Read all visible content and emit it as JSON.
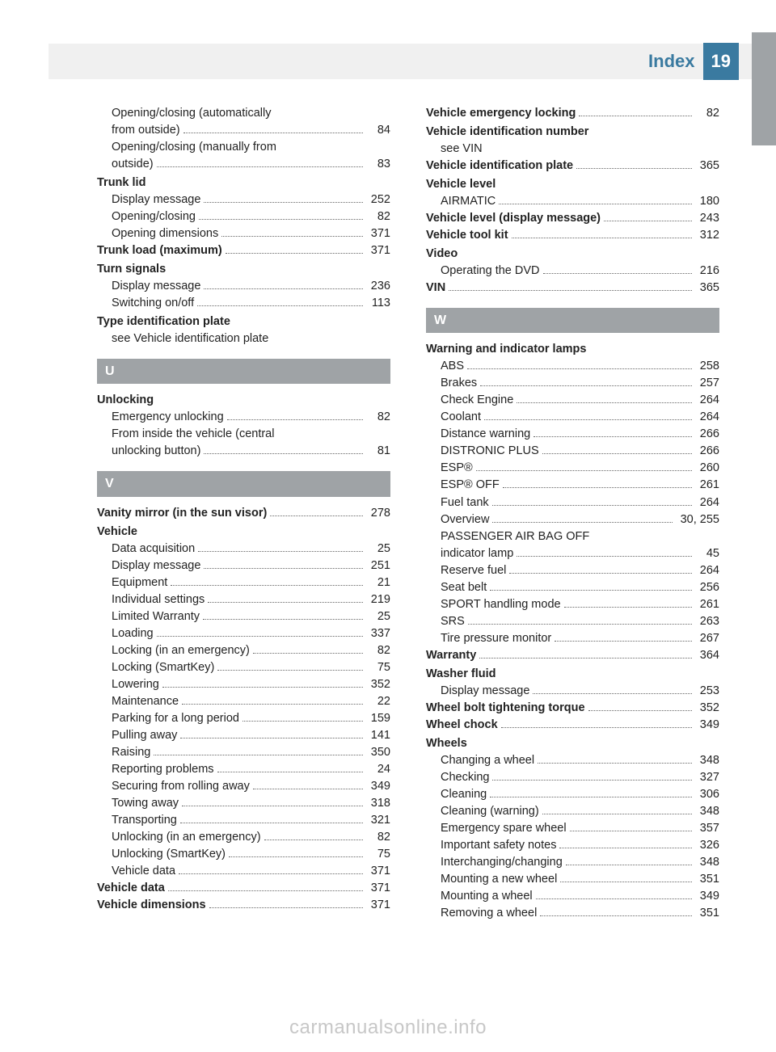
{
  "header": {
    "title": "Index",
    "page_number": "19"
  },
  "colors": {
    "accent": "#3a7aa0",
    "grey": "#9fa3a6",
    "band": "#f0f0f0",
    "text": "#222222"
  },
  "typography": {
    "body_fontsize": 14.5,
    "header_fontsize": 22,
    "letter_fontsize": 16
  },
  "watermark": "carmanualsonline.info",
  "left_column": [
    {
      "type": "sub",
      "label": "Opening/closing (automatically"
    },
    {
      "type": "sub_cont",
      "label": "from outside)",
      "page": "84"
    },
    {
      "type": "sub",
      "label": "Opening/closing (manually from"
    },
    {
      "type": "sub_cont",
      "label": "outside)",
      "page": "83"
    },
    {
      "type": "bold",
      "label": "Trunk lid"
    },
    {
      "type": "sub",
      "label": "Display message",
      "page": "252"
    },
    {
      "type": "sub",
      "label": "Opening/closing",
      "page": "82"
    },
    {
      "type": "sub",
      "label": "Opening dimensions",
      "page": "371"
    },
    {
      "type": "bold_entry",
      "label": "Trunk load (maximum)",
      "page": "371"
    },
    {
      "type": "bold",
      "label": "Turn signals"
    },
    {
      "type": "sub",
      "label": "Display message",
      "page": "236"
    },
    {
      "type": "sub",
      "label": "Switching on/off",
      "page": "113"
    },
    {
      "type": "bold",
      "label": "Type identification plate"
    },
    {
      "type": "see",
      "label": "see Vehicle identification plate"
    },
    {
      "type": "letter",
      "label": "U"
    },
    {
      "type": "bold",
      "label": "Unlocking"
    },
    {
      "type": "sub",
      "label": "Emergency unlocking",
      "page": "82"
    },
    {
      "type": "sub",
      "label": "From inside the vehicle (central"
    },
    {
      "type": "sub_cont",
      "label": "unlocking button)",
      "page": "81"
    },
    {
      "type": "letter",
      "label": "V"
    },
    {
      "type": "bold_entry",
      "label": "Vanity mirror (in the sun visor)",
      "page": "278"
    },
    {
      "type": "bold",
      "label": "Vehicle"
    },
    {
      "type": "sub",
      "label": "Data acquisition",
      "page": "25"
    },
    {
      "type": "sub",
      "label": "Display message",
      "page": "251"
    },
    {
      "type": "sub",
      "label": "Equipment",
      "page": "21"
    },
    {
      "type": "sub",
      "label": "Individual settings",
      "page": "219"
    },
    {
      "type": "sub",
      "label": "Limited Warranty",
      "page": "25"
    },
    {
      "type": "sub",
      "label": "Loading",
      "page": "337"
    },
    {
      "type": "sub",
      "label": "Locking (in an emergency)",
      "page": "82"
    },
    {
      "type": "sub",
      "label": "Locking (SmartKey)",
      "page": "75"
    },
    {
      "type": "sub",
      "label": "Lowering",
      "page": "352"
    },
    {
      "type": "sub",
      "label": "Maintenance",
      "page": "22"
    },
    {
      "type": "sub",
      "label": "Parking for a long period",
      "page": "159"
    },
    {
      "type": "sub",
      "label": "Pulling away",
      "page": "141"
    },
    {
      "type": "sub",
      "label": "Raising",
      "page": "350"
    },
    {
      "type": "sub",
      "label": "Reporting problems",
      "page": "24"
    },
    {
      "type": "sub",
      "label": "Securing from rolling away",
      "page": "349"
    },
    {
      "type": "sub",
      "label": "Towing away",
      "page": "318"
    },
    {
      "type": "sub",
      "label": "Transporting",
      "page": "321"
    },
    {
      "type": "sub",
      "label": "Unlocking (in an emergency)",
      "page": "82"
    },
    {
      "type": "sub",
      "label": "Unlocking (SmartKey)",
      "page": "75"
    },
    {
      "type": "sub",
      "label": "Vehicle data",
      "page": "371"
    },
    {
      "type": "bold_entry",
      "label": "Vehicle data",
      "page": "371"
    },
    {
      "type": "bold_entry",
      "label": "Vehicle dimensions",
      "page": "371"
    }
  ],
  "right_column": [
    {
      "type": "bold_entry",
      "label": "Vehicle emergency locking",
      "page": "82"
    },
    {
      "type": "bold",
      "label": "Vehicle identification number"
    },
    {
      "type": "see",
      "label": "see VIN"
    },
    {
      "type": "bold_entry",
      "label": "Vehicle identification plate",
      "page": "365"
    },
    {
      "type": "bold",
      "label": "Vehicle level"
    },
    {
      "type": "sub",
      "label": "AIRMATIC",
      "page": "180"
    },
    {
      "type": "bold_entry",
      "label": "Vehicle level (display message)",
      "page": "243"
    },
    {
      "type": "bold_entry",
      "label": "Vehicle tool kit",
      "page": "312"
    },
    {
      "type": "bold",
      "label": "Video"
    },
    {
      "type": "sub",
      "label": "Operating the DVD",
      "page": "216"
    },
    {
      "type": "bold_entry",
      "label": "VIN",
      "page": "365"
    },
    {
      "type": "letter",
      "label": "W"
    },
    {
      "type": "bold",
      "label": "Warning and indicator lamps"
    },
    {
      "type": "sub",
      "label": "ABS",
      "page": "258"
    },
    {
      "type": "sub",
      "label": "Brakes",
      "page": "257"
    },
    {
      "type": "sub",
      "label": "Check Engine",
      "page": "264"
    },
    {
      "type": "sub",
      "label": "Coolant",
      "page": "264"
    },
    {
      "type": "sub",
      "label": "Distance warning",
      "page": "266"
    },
    {
      "type": "sub",
      "label": "DISTRONIC PLUS",
      "page": "266"
    },
    {
      "type": "sub",
      "label": "ESP®",
      "page": "260"
    },
    {
      "type": "sub",
      "label": "ESP® OFF",
      "page": "261"
    },
    {
      "type": "sub",
      "label": "Fuel tank",
      "page": "264"
    },
    {
      "type": "sub",
      "label": "Overview",
      "page": "30, 255"
    },
    {
      "type": "sub",
      "label": "PASSENGER AIR BAG OFF"
    },
    {
      "type": "sub_cont",
      "label": "indicator lamp",
      "page": "45"
    },
    {
      "type": "sub",
      "label": "Reserve fuel",
      "page": "264"
    },
    {
      "type": "sub",
      "label": "Seat belt",
      "page": "256"
    },
    {
      "type": "sub",
      "label": "SPORT handling mode",
      "page": "261"
    },
    {
      "type": "sub",
      "label": "SRS",
      "page": "263"
    },
    {
      "type": "sub",
      "label": "Tire pressure monitor",
      "page": "267"
    },
    {
      "type": "bold_entry",
      "label": "Warranty",
      "page": "364"
    },
    {
      "type": "bold",
      "label": "Washer fluid"
    },
    {
      "type": "sub",
      "label": "Display message",
      "page": "253"
    },
    {
      "type": "bold_entry",
      "label": "Wheel bolt tightening torque",
      "page": "352"
    },
    {
      "type": "bold_entry",
      "label": "Wheel chock",
      "page": "349"
    },
    {
      "type": "bold",
      "label": "Wheels"
    },
    {
      "type": "sub",
      "label": "Changing a wheel",
      "page": "348"
    },
    {
      "type": "sub",
      "label": "Checking",
      "page": "327"
    },
    {
      "type": "sub",
      "label": "Cleaning",
      "page": "306"
    },
    {
      "type": "sub",
      "label": "Cleaning (warning)",
      "page": "348"
    },
    {
      "type": "sub",
      "label": "Emergency spare wheel",
      "page": "357"
    },
    {
      "type": "sub",
      "label": "Important safety notes",
      "page": "326"
    },
    {
      "type": "sub",
      "label": "Interchanging/changing",
      "page": "348"
    },
    {
      "type": "sub",
      "label": "Mounting a new wheel",
      "page": "351"
    },
    {
      "type": "sub",
      "label": "Mounting a wheel",
      "page": "349"
    },
    {
      "type": "sub",
      "label": "Removing a wheel",
      "page": "351"
    }
  ]
}
